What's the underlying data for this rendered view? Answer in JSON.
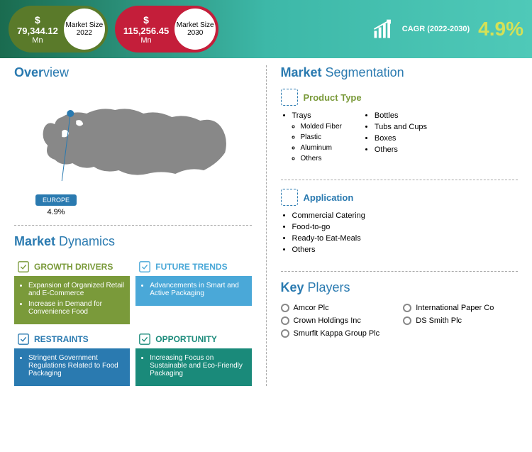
{
  "header": {
    "gradient": [
      "#1a6b4f",
      "#3db8a8",
      "#4fc9b8"
    ],
    "pill1": {
      "bg": "#5a7a2a",
      "currency": "$",
      "value": "79,344.12",
      "unit": "Mn",
      "label1": "Market Size",
      "label2": "2022"
    },
    "pill2": {
      "bg": "#c41e3a",
      "currency": "$",
      "value": "115,256.45",
      "unit": "Mn",
      "label1": "Market Size",
      "label2": "2030"
    },
    "cagr": {
      "label": "CAGR (2022-2030)",
      "value": "4.9%",
      "value_color": "#d4e157"
    }
  },
  "overview": {
    "title_bold": "Over",
    "title_rest": "view",
    "title_color": "#2a7ab0",
    "region": "EUROPE",
    "region_pct": "4.9%",
    "map_color": "#888888"
  },
  "dynamics": {
    "title_bold": "Market",
    "title_rest": " Dynamics",
    "title_color": "#2a7ab0",
    "boxes": [
      {
        "name": "GROWTH DRIVERS",
        "head_color": "#7a9a3a",
        "body_color": "#7a9a3a",
        "items": [
          "Expansion of Organized Retail and E-Commerce",
          "Increase in Demand for Convenience Food"
        ]
      },
      {
        "name": "FUTURE TRENDS",
        "head_color": "#4aa8d8",
        "body_color": "#4aa8d8",
        "items": [
          "Advancements in Smart and Active Packaging"
        ]
      },
      {
        "name": "RESTRAINTS",
        "head_color": "#2a7ab0",
        "body_color": "#2a7ab0",
        "items": [
          "Stringent Government Regulations Related to Food Packaging"
        ]
      },
      {
        "name": "OPPORTUNITY",
        "head_color": "#1a8a7a",
        "body_color": "#1a8a7a",
        "items": [
          "Increasing Focus on Sustainable and Eco-Friendly Packaging"
        ]
      }
    ]
  },
  "segmentation": {
    "title_bold": "Market",
    "title_rest": " Segmentation",
    "title_color": "#2a7ab0",
    "groups": [
      {
        "name": "Product Type",
        "name_color": "#7a9a3a",
        "col1": [
          {
            "text": "Trays",
            "subs": [
              "Molded Fiber",
              "Plastic",
              "Aluminum",
              "Others"
            ]
          }
        ],
        "col2": [
          "Bottles",
          "Tubs and Cups",
          "Boxes",
          "Others"
        ]
      },
      {
        "name": "Application",
        "name_color": "#2a7ab0",
        "col1": [
          {
            "text": "Commercial Catering"
          },
          {
            "text": "Food-to-go"
          },
          {
            "text": "Ready-to Eat-Meals"
          },
          {
            "text": "Others"
          }
        ]
      }
    ]
  },
  "players": {
    "title_bold": "Key",
    "title_rest": " Players",
    "title_color": "#2a7ab0",
    "list": [
      "Amcor Plc",
      "Crown Holdings Inc",
      "Smurfit Kappa Group Plc",
      "International Paper Co",
      "DS Smith Plc"
    ]
  }
}
